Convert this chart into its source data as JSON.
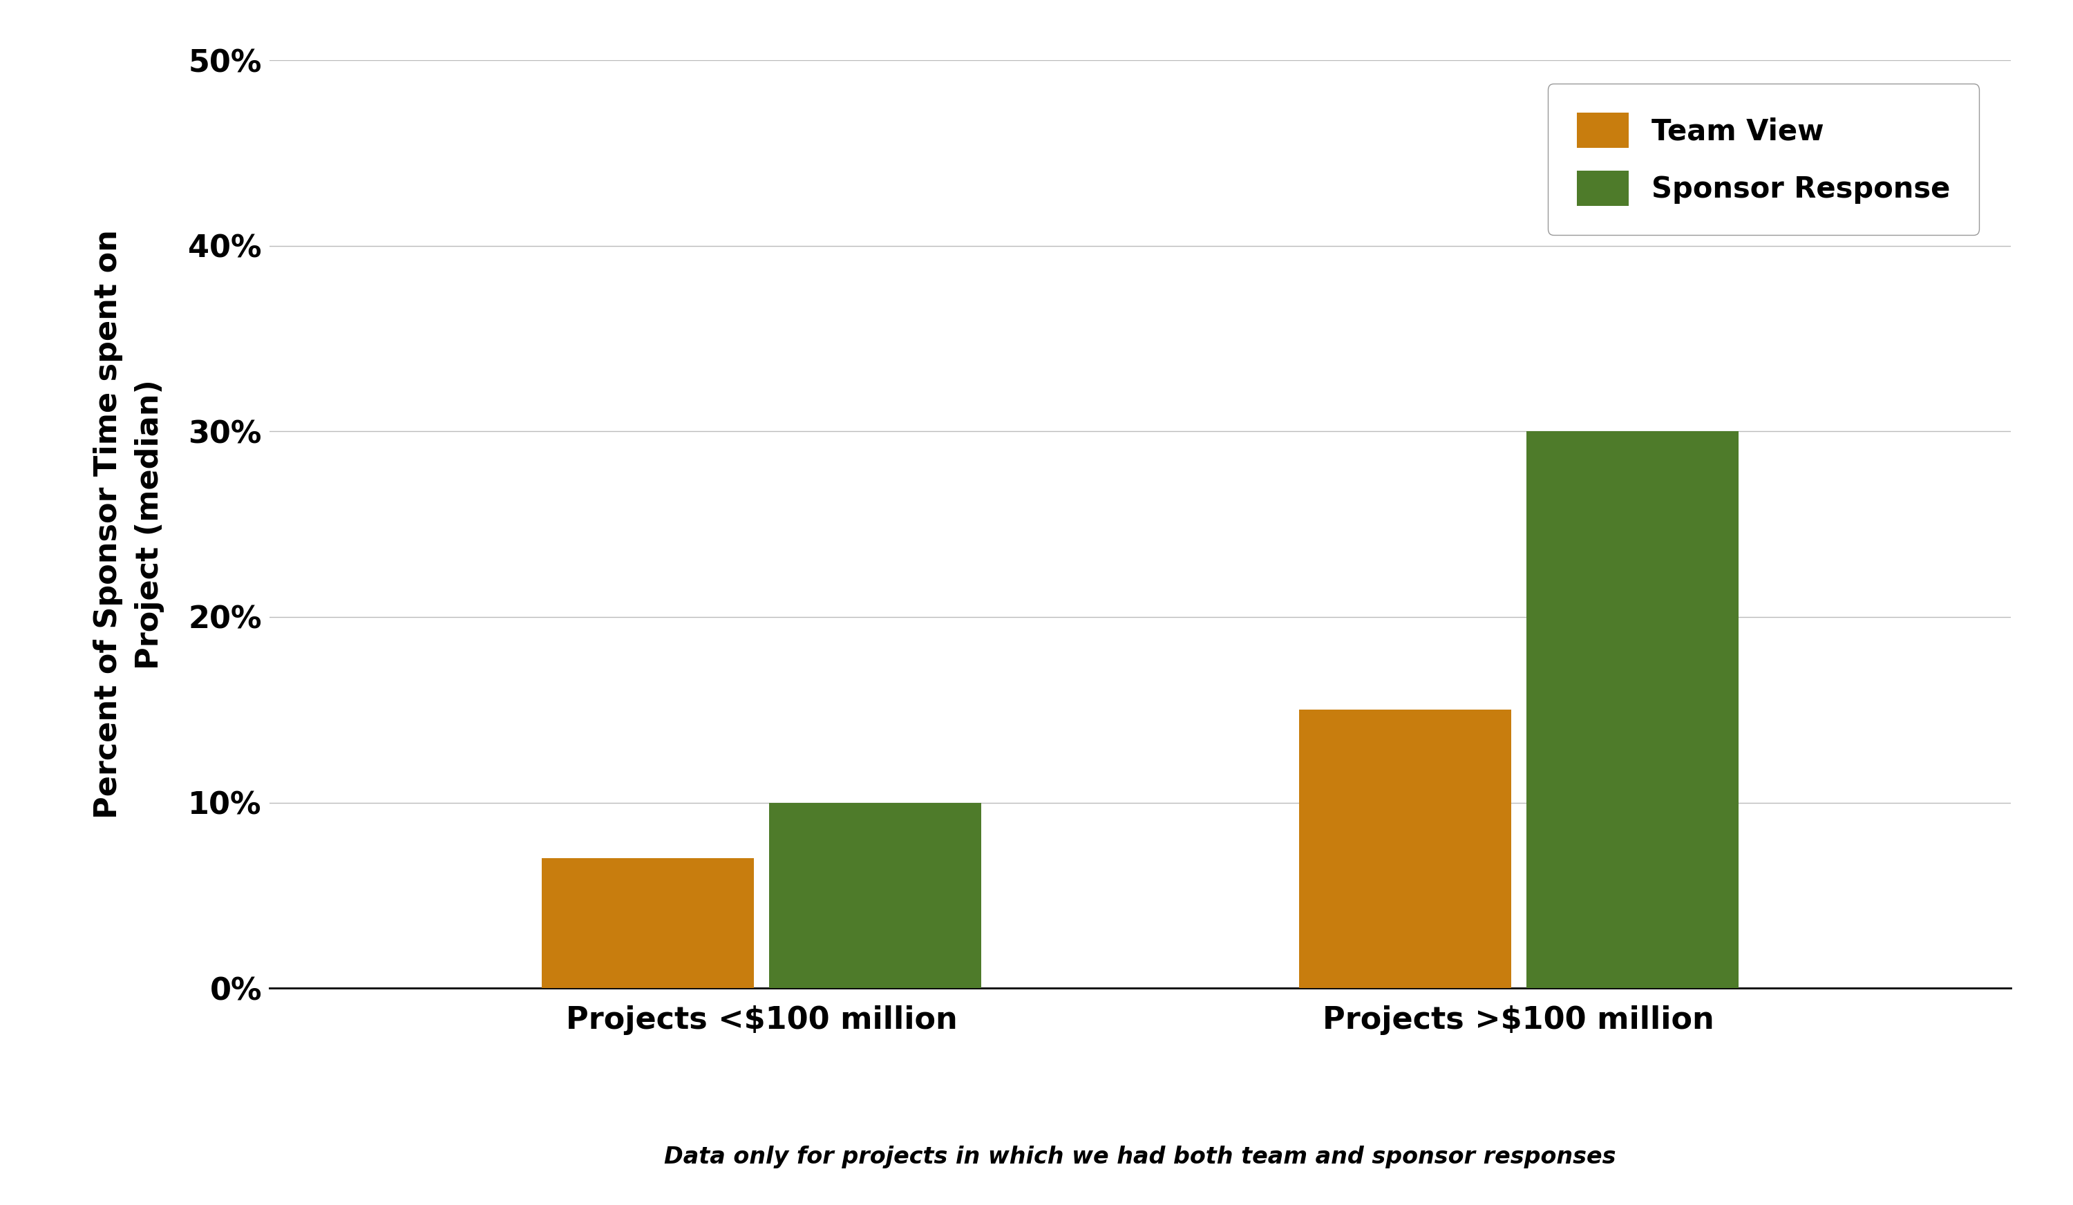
{
  "categories": [
    "Projects <$100 million",
    "Projects >$100 million"
  ],
  "team_view_values": [
    0.07,
    0.15
  ],
  "sponsor_response_values": [
    0.1,
    0.3
  ],
  "team_view_color": "#C87D0E",
  "sponsor_response_color": "#4E7B2A",
  "ylabel": "Percent of Sponsor Time spent on\nProject (median)",
  "ylim": [
    0,
    0.5
  ],
  "yticks": [
    0.0,
    0.1,
    0.2,
    0.3,
    0.4,
    0.5
  ],
  "ytick_labels": [
    "0%",
    "10%",
    "20%",
    "30%",
    "40%",
    "50%"
  ],
  "legend_team": "Team View",
  "legend_sponsor": "Sponsor Response",
  "footnote": "Data only for projects in which we had both team and sponsor responses",
  "bar_width": 0.28,
  "background_color": "#FFFFFF",
  "grid_color": "#BBBBBB",
  "axis_label_fontsize": 32,
  "tick_fontsize": 32,
  "legend_fontsize": 30,
  "category_fontsize": 32,
  "footnote_fontsize": 24
}
